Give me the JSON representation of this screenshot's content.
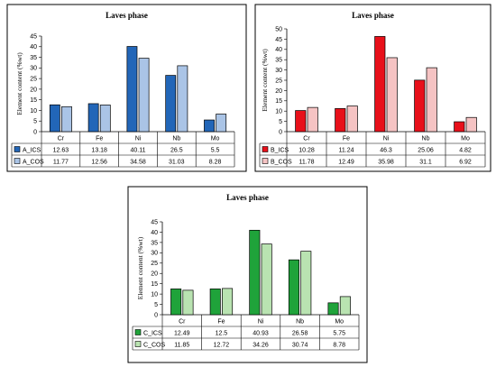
{
  "chart_data": [
    {
      "type": "bar",
      "title": "Laves phase",
      "ylabel": "Element content (%wt)",
      "ylim": [
        0,
        45
      ],
      "yticks": [
        0,
        5,
        10,
        15,
        20,
        25,
        30,
        35,
        40,
        45
      ],
      "categories": [
        "Cr",
        "Fe",
        "Ni",
        "Nb",
        "Mo"
      ],
      "series": [
        {
          "name": "A_ICS",
          "color": "#2266b8",
          "values": [
            12.63,
            13.18,
            40.11,
            26.5,
            5.5
          ]
        },
        {
          "name": "A_COS",
          "color": "#aac4e6",
          "values": [
            11.77,
            12.56,
            34.58,
            31.03,
            8.28
          ]
        }
      ],
      "data_table": true
    },
    {
      "type": "bar",
      "title": "Laves phase",
      "ylabel": "Element content (%wt)",
      "ylim": [
        0,
        50
      ],
      "yticks": [
        0,
        5,
        10,
        15,
        20,
        25,
        30,
        35,
        40,
        45,
        50
      ],
      "categories": [
        "Cr",
        "Fe",
        "Ni",
        "Nb",
        "Mo"
      ],
      "series": [
        {
          "name": "B_ICS",
          "color": "#e8101a",
          "values": [
            10.28,
            11.24,
            46.3,
            25.06,
            4.82
          ]
        },
        {
          "name": "B_COS",
          "color": "#f5c3c3",
          "values": [
            11.78,
            12.49,
            35.98,
            31.1,
            6.92
          ]
        }
      ],
      "data_table": true
    },
    {
      "type": "bar",
      "title": "Laves phase",
      "ylabel": "Element content (%wt)",
      "ylim": [
        0,
        45
      ],
      "yticks": [
        0,
        5,
        10,
        15,
        20,
        25,
        30,
        35,
        40,
        45
      ],
      "categories": [
        "Cr",
        "Fe",
        "Ni",
        "Nb",
        "Mo"
      ],
      "series": [
        {
          "name": "C_ICS",
          "color": "#1fa33a",
          "values": [
            12.49,
            12.5,
            40.93,
            26.58,
            5.75
          ]
        },
        {
          "name": "C_COS",
          "color": "#b9e3b1",
          "values": [
            11.85,
            12.72,
            34.26,
            30.74,
            8.78
          ]
        }
      ],
      "data_table": true
    }
  ]
}
